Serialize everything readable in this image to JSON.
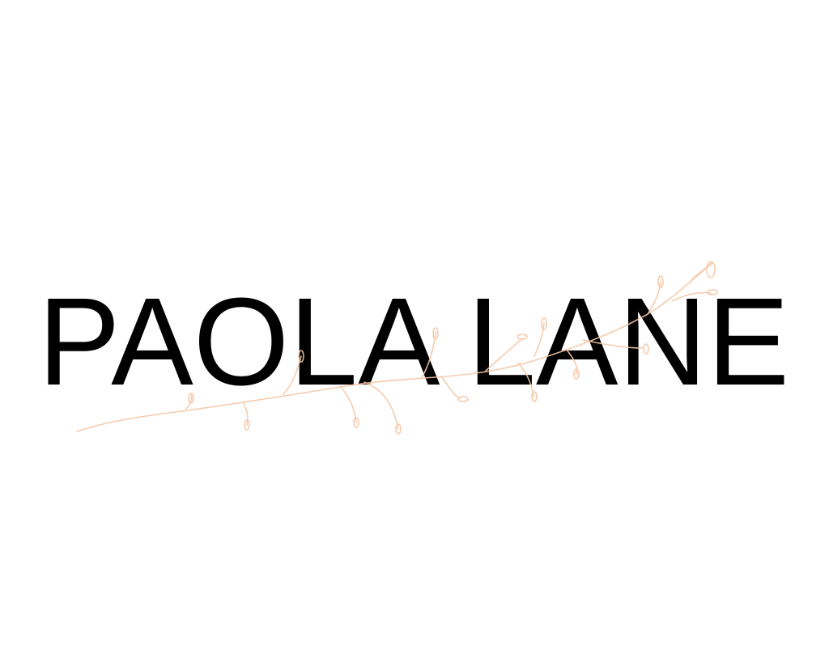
{
  "logo": {
    "text": "PAOLA LANE",
    "letter_color": "#000000",
    "branch_color": "#f4c7a6"
  }
}
